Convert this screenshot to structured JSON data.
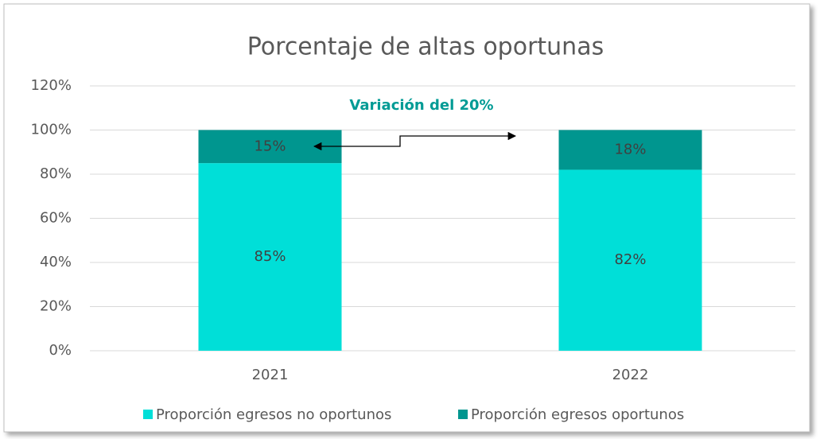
{
  "chart_data": {
    "type": "stacked_bar",
    "title": "Porcentaje de altas oportunas",
    "annotation": "Variación del 20%",
    "categories": [
      "2021",
      "2022"
    ],
    "series": [
      {
        "name": "Proporción egresos no oportunos",
        "color": "#00dfd8",
        "values": [
          85,
          82
        ],
        "value_labels": [
          "85%",
          "82%"
        ]
      },
      {
        "name": "Proporción egresos oportunos",
        "color": "#00968f",
        "values": [
          15,
          18
        ],
        "value_labels": [
          "15%",
          "18%"
        ]
      }
    ],
    "ylim": [
      0,
      120
    ],
    "yticks": [
      {
        "value": 0,
        "label": "0%"
      },
      {
        "value": 20,
        "label": "20%"
      },
      {
        "value": 40,
        "label": "40%"
      },
      {
        "value": 60,
        "label": "60%"
      },
      {
        "value": 80,
        "label": "80%"
      },
      {
        "value": 100,
        "label": "100%"
      },
      {
        "value": 120,
        "label": "120%"
      }
    ],
    "grid": true,
    "legend": "bottom"
  }
}
